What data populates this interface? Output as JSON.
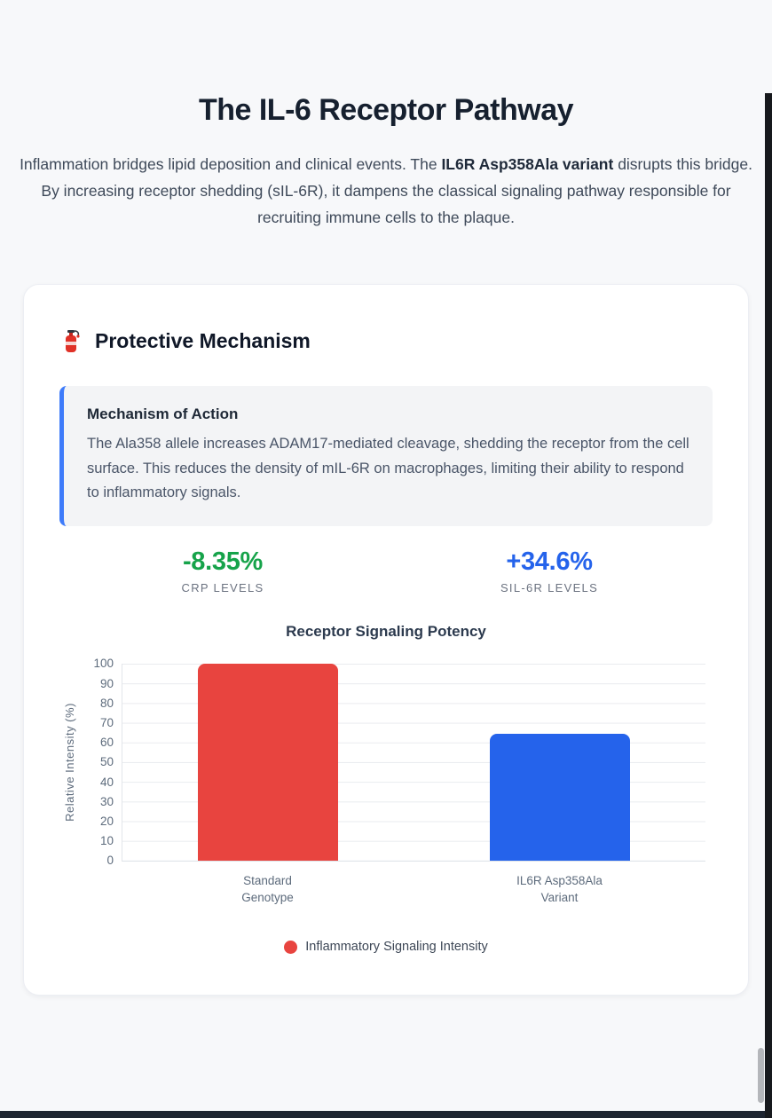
{
  "page": {
    "title": "The IL-6 Receptor Pathway",
    "intro": {
      "before_bold": "Inflammation bridges lipid deposition and clinical events. The ",
      "bold": "IL6R Asp358Ala variant",
      "after_bold": " disrupts this bridge. By increasing receptor shedding (sIL-6R), it dampens the classical signaling pathway responsible for recruiting immune cells to the plaque."
    }
  },
  "card": {
    "icon": "fire-extinguisher",
    "title": "Protective Mechanism",
    "callout": {
      "title": "Mechanism of Action",
      "body": "The Ala358 allele increases ADAM17-mediated cleavage, shedding the receptor from the cell surface. This reduces the density of mIL-6R on macrophages, limiting their ability to respond to inflammatory signals.",
      "accent_color": "#3e7bfa"
    },
    "stats": [
      {
        "value": "-8.35%",
        "label": "CRP LEVELS",
        "color": "#16a34a"
      },
      {
        "value": "+34.6%",
        "label": "SIL-6R LEVELS",
        "color": "#2563eb"
      }
    ]
  },
  "chart_data": {
    "type": "bar",
    "title": "Receptor Signaling Potency",
    "ylabel": "Relative Intensity (%)",
    "categories": [
      "Standard Genotype",
      "IL6R Asp358Ala Variant"
    ],
    "categories_lines": [
      [
        "Standard",
        "Genotype"
      ],
      [
        "IL6R Asp358Ala",
        "Variant"
      ]
    ],
    "series": [
      {
        "name": "Inflammatory Signaling Intensity",
        "values": [
          100,
          64.5
        ]
      }
    ],
    "bar_colors": [
      "#e8443f",
      "#2563eb"
    ],
    "ylim": [
      0,
      100
    ],
    "ytick_step": 10,
    "yticks": [
      "100",
      "90",
      "80",
      "70",
      "60",
      "50",
      "40",
      "30",
      "20",
      "10",
      "0"
    ],
    "grid": true,
    "legend_position": "bottom",
    "legend": [
      {
        "label": "Inflammatory Signaling Intensity",
        "color": "#e8443f"
      }
    ]
  }
}
